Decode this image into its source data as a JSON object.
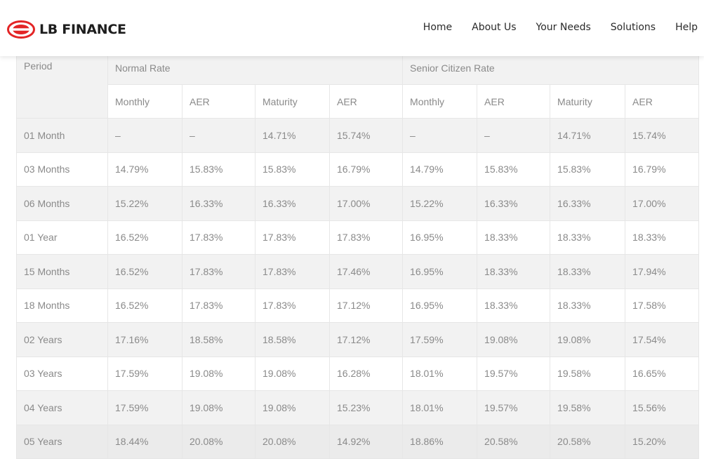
{
  "brand": {
    "name": "LB FINANCE",
    "color": "#e32526"
  },
  "nav": [
    {
      "label": "Home"
    },
    {
      "label": "About Us"
    },
    {
      "label": "Your Needs"
    },
    {
      "label": "Solutions"
    },
    {
      "label": "Help"
    }
  ],
  "table": {
    "period_header": "Period",
    "normal_header": "Normal Rate",
    "senior_header": "Senior Citizen Rate",
    "sub_headers": [
      "Monthly",
      "AER",
      "Maturity",
      "AER",
      "Monthly",
      "AER",
      "Maturity",
      "AER"
    ],
    "rows": [
      {
        "period": "01 Month",
        "cells": [
          "–",
          "–",
          "14.71%",
          "15.74%",
          "–",
          "–",
          "14.71%",
          "15.74%"
        ]
      },
      {
        "period": "03 Months",
        "cells": [
          "14.79%",
          "15.83%",
          "15.83%",
          "16.79%",
          "14.79%",
          "15.83%",
          "15.83%",
          "16.79%"
        ]
      },
      {
        "period": "06 Months",
        "cells": [
          "15.22%",
          "16.33%",
          "16.33%",
          "17.00%",
          "15.22%",
          "16.33%",
          "16.33%",
          "17.00%"
        ]
      },
      {
        "period": "01 Year",
        "cells": [
          "16.52%",
          "17.83%",
          "17.83%",
          "17.83%",
          "16.95%",
          "18.33%",
          "18.33%",
          "18.33%"
        ]
      },
      {
        "period": "15 Months",
        "cells": [
          "16.52%",
          "17.83%",
          "17.83%",
          "17.46%",
          "16.95%",
          "18.33%",
          "18.33%",
          "17.94%"
        ]
      },
      {
        "period": "18 Months",
        "cells": [
          "16.52%",
          "17.83%",
          "17.83%",
          "17.12%",
          "16.95%",
          "18.33%",
          "18.33%",
          "17.58%"
        ]
      },
      {
        "period": "02 Years",
        "cells": [
          "17.16%",
          "18.58%",
          "18.58%",
          "17.12%",
          "17.59%",
          "19.08%",
          "19.08%",
          "17.54%"
        ]
      },
      {
        "period": "03 Years",
        "cells": [
          "17.59%",
          "19.08%",
          "19.08%",
          "16.28%",
          "18.01%",
          "19.57%",
          "19.58%",
          "16.65%"
        ]
      },
      {
        "period": "04 Years",
        "cells": [
          "17.59%",
          "19.08%",
          "19.08%",
          "15.23%",
          "18.01%",
          "19.57%",
          "19.58%",
          "15.56%"
        ]
      },
      {
        "period": "05 Years",
        "cells": [
          "18.44%",
          "20.08%",
          "20.08%",
          "14.92%",
          "18.86%",
          "20.58%",
          "20.58%",
          "15.20%"
        ]
      }
    ]
  }
}
